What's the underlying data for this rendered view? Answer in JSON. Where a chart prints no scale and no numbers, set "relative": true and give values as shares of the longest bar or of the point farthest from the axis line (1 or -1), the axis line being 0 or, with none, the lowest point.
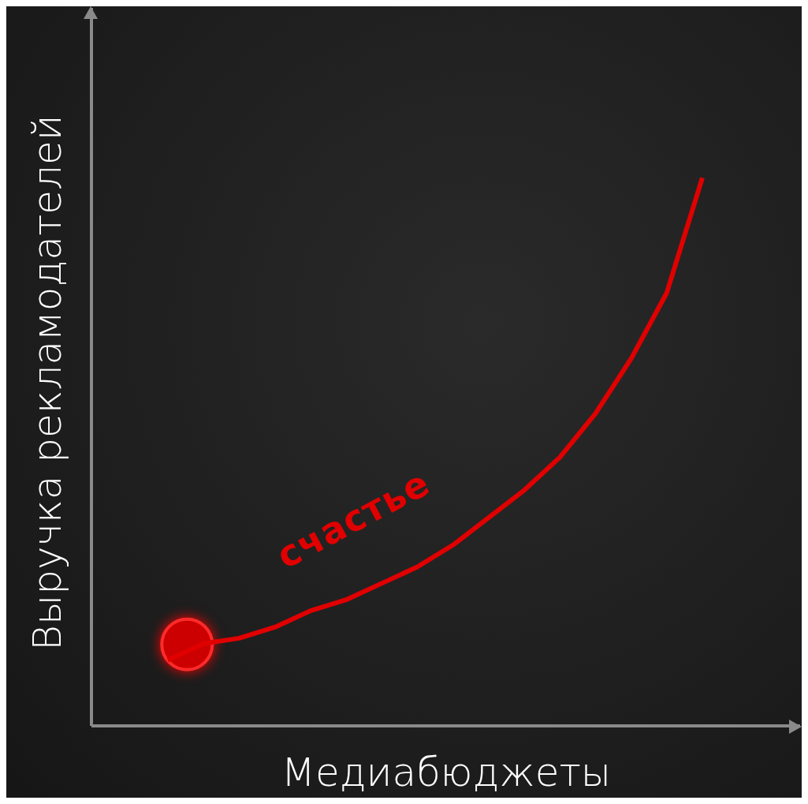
{
  "chart_data": {
    "type": "line",
    "xlabel": "Медиабюджеты",
    "ylabel": "Выручка рекламодателей",
    "relative": true,
    "categories": [
      null,
      null,
      null,
      null,
      null,
      null,
      null,
      null,
      null,
      null,
      null,
      null,
      null,
      null,
      null,
      null
    ],
    "series": [
      {
        "color": "#e00000",
        "values": [
          0.12,
          0.15,
          0.16,
          0.18,
          0.21,
          0.23,
          0.26,
          0.29,
          0.33,
          0.38,
          0.43,
          0.49,
          0.57,
          0.67,
          0.79,
          1
        ]
      }
    ],
    "annotations": [
      "счастье"
    ]
  }
}
